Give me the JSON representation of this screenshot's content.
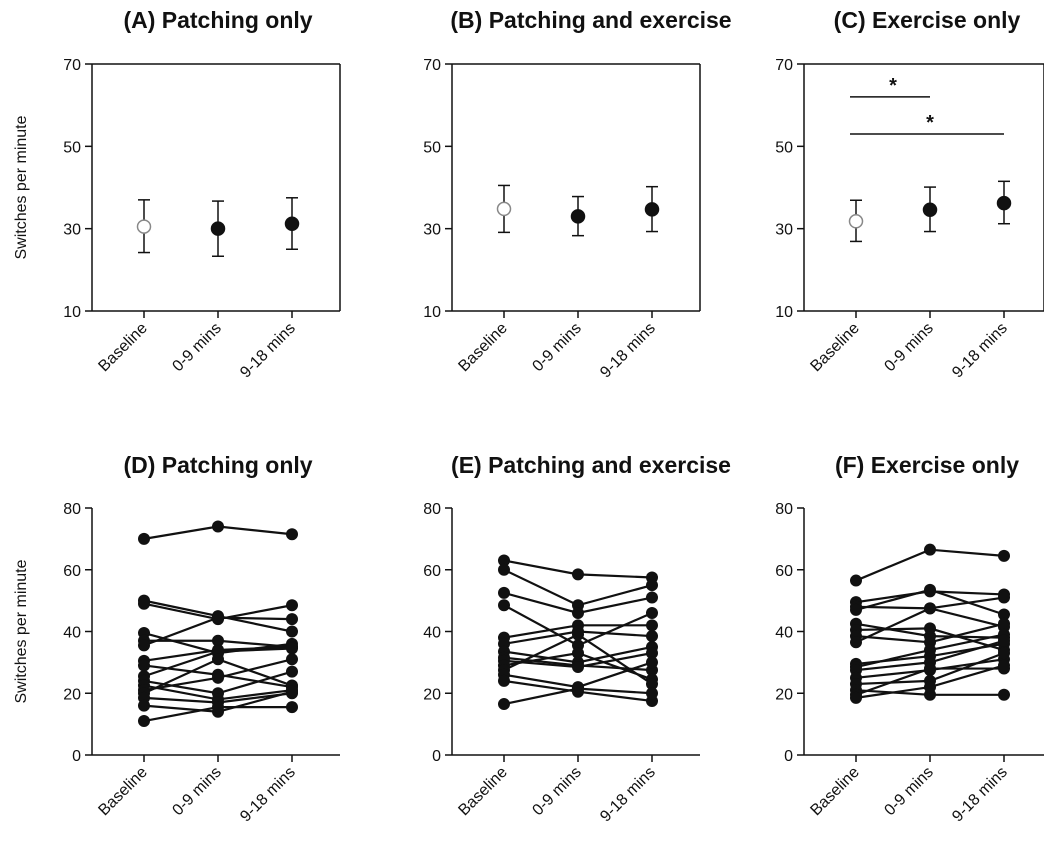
{
  "chart_data": [
    {
      "type": "scatter",
      "panel": "A",
      "title": "(A) Patching only",
      "ylabel": "Switches per minute",
      "categories": [
        "Baseline",
        "0-9 mins",
        "9-18 mins"
      ],
      "ylim": [
        10,
        70
      ],
      "yticks": [
        10,
        30,
        50,
        70
      ],
      "means": [
        30.5,
        30,
        31.2
      ],
      "err_low": [
        24.2,
        23.3,
        25
      ],
      "err_high": [
        37,
        36.7,
        37.5
      ],
      "marker_fill": [
        "open",
        "filled",
        "filled"
      ],
      "significance": []
    },
    {
      "type": "scatter",
      "panel": "B",
      "title": "(B) Patching and exercise",
      "ylabel": "",
      "categories": [
        "Baseline",
        "0-9 mins",
        "9-18 mins"
      ],
      "ylim": [
        10,
        70
      ],
      "yticks": [
        10,
        30,
        50,
        70
      ],
      "means": [
        34.8,
        33,
        34.7
      ],
      "err_low": [
        29.1,
        28.3,
        29.3
      ],
      "err_high": [
        40.5,
        37.8,
        40.2
      ],
      "marker_fill": [
        "open",
        "filled",
        "filled"
      ],
      "significance": []
    },
    {
      "type": "scatter",
      "panel": "C",
      "title": "(C) Exercise only",
      "ylabel": "",
      "categories": [
        "Baseline",
        "0-9 mins",
        "9-18 mins"
      ],
      "ylim": [
        10,
        70
      ],
      "yticks": [
        10,
        30,
        50,
        70
      ],
      "means": [
        31.8,
        34.6,
        36.2
      ],
      "err_low": [
        26.9,
        29.3,
        31.2
      ],
      "err_high": [
        36.9,
        40.1,
        41.5
      ],
      "marker_fill": [
        "open",
        "filled",
        "filled"
      ],
      "significance": [
        {
          "from": 0,
          "to": 1,
          "y": 62,
          "label": "*"
        },
        {
          "from": 0,
          "to": 2,
          "y": 53,
          "label": "*"
        }
      ]
    },
    {
      "type": "line",
      "panel": "D",
      "title": "(D) Patching only",
      "ylabel": "Switches per minute",
      "categories": [
        "Baseline",
        "0-9 mins",
        "9-18 mins"
      ],
      "ylim": [
        0,
        80
      ],
      "yticks": [
        0,
        20,
        40,
        60,
        80
      ],
      "series": [
        {
          "values": [
            70,
            74,
            71.5
          ]
        },
        {
          "values": [
            50,
            45,
            40
          ]
        },
        {
          "values": [
            49,
            44,
            48.5
          ]
        },
        {
          "values": [
            39.5,
            33,
            36
          ]
        },
        {
          "values": [
            37,
            37,
            35
          ]
        },
        {
          "values": [
            35.5,
            44.5,
            44
          ]
        },
        {
          "values": [
            30.5,
            34,
            35
          ]
        },
        {
          "values": [
            29,
            26,
            22
          ]
        },
        {
          "values": [
            25.5,
            33.5,
            34.5
          ]
        },
        {
          "values": [
            24,
            20,
            27
          ]
        },
        {
          "values": [
            22.5,
            18,
            21
          ]
        },
        {
          "values": [
            21,
            25,
            31
          ]
        },
        {
          "values": [
            20,
            31,
            22.5
          ]
        },
        {
          "values": [
            18.5,
            17,
            20
          ]
        },
        {
          "values": [
            16,
            14,
            20.5
          ]
        },
        {
          "values": [
            11,
            15.5,
            15.5
          ]
        }
      ]
    },
    {
      "type": "line",
      "panel": "E",
      "title": "(E) Patching and exercise",
      "ylabel": "",
      "categories": [
        "Baseline",
        "0-9 mins",
        "9-18 mins"
      ],
      "ylim": [
        0,
        80
      ],
      "yticks": [
        0,
        20,
        40,
        60,
        80
      ],
      "series": [
        {
          "values": [
            63,
            58.5,
            57.5
          ]
        },
        {
          "values": [
            60,
            48.5,
            55
          ]
        },
        {
          "values": [
            52.5,
            46,
            51
          ]
        },
        {
          "values": [
            48.5,
            35.5,
            46
          ]
        },
        {
          "values": [
            38,
            42,
            42
          ]
        },
        {
          "values": [
            36,
            40,
            38.5
          ]
        },
        {
          "values": [
            33.5,
            30,
            35
          ]
        },
        {
          "values": [
            31.5,
            29,
            27.5
          ]
        },
        {
          "values": [
            30.5,
            28.5,
            33
          ]
        },
        {
          "values": [
            29,
            33,
            24.5
          ]
        },
        {
          "values": [
            27.5,
            39,
            23
          ]
        },
        {
          "values": [
            26,
            22,
            30
          ]
        },
        {
          "values": [
            24,
            20.5,
            17.5
          ]
        },
        {
          "values": [
            16.5,
            21.5,
            20
          ]
        }
      ]
    },
    {
      "type": "line",
      "panel": "F",
      "title": "(F) Exercise only",
      "ylabel": "",
      "categories": [
        "Baseline",
        "0-9 mins",
        "9-18 mins"
      ],
      "ylim": [
        0,
        80
      ],
      "yticks": [
        0,
        20,
        40,
        60,
        80
      ],
      "series": [
        {
          "values": [
            56.5,
            66.5,
            64.5
          ]
        },
        {
          "values": [
            49.5,
            53,
            52
          ]
        },
        {
          "values": [
            48,
            47.5,
            41.5
          ]
        },
        {
          "values": [
            47,
            53.5,
            45.5
          ]
        },
        {
          "values": [
            42.5,
            38.5,
            38
          ]
        },
        {
          "values": [
            40.5,
            41,
            34
          ]
        },
        {
          "values": [
            38.5,
            36.5,
            42.5
          ]
        },
        {
          "values": [
            36.5,
            47.5,
            51
          ]
        },
        {
          "values": [
            29.5,
            32,
            36
          ]
        },
        {
          "values": [
            28.5,
            34,
            39
          ]
        },
        {
          "values": [
            27.5,
            30,
            37
          ]
        },
        {
          "values": [
            25,
            27.5,
            31
          ]
        },
        {
          "values": [
            23,
            24,
            33
          ]
        },
        {
          "values": [
            21,
            19.5,
            19.5
          ]
        },
        {
          "values": [
            19.5,
            28,
            28
          ]
        },
        {
          "values": [
            18.5,
            22,
            29
          ]
        }
      ]
    }
  ]
}
